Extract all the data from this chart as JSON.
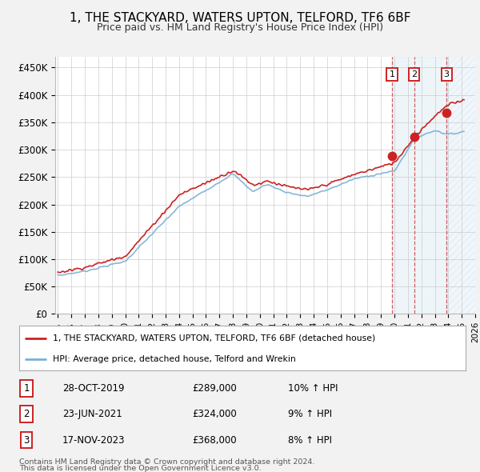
{
  "title": "1, THE STACKYARD, WATERS UPTON, TELFORD, TF6 6BF",
  "subtitle": "Price paid vs. HM Land Registry's House Price Index (HPI)",
  "ylim": [
    0,
    470000
  ],
  "yticks": [
    0,
    50000,
    100000,
    150000,
    200000,
    250000,
    300000,
    350000,
    400000,
    450000
  ],
  "ytick_labels": [
    "£0",
    "£50K",
    "£100K",
    "£150K",
    "£200K",
    "£250K",
    "£300K",
    "£350K",
    "£400K",
    "£450K"
  ],
  "hpi_color": "#7ab0d4",
  "price_color": "#cc2222",
  "background_color": "#f2f2f2",
  "plot_bg_color": "#ffffff",
  "legend_line1": "1, THE STACKYARD, WATERS UPTON, TELFORD, TF6 6BF (detached house)",
  "legend_line2": "HPI: Average price, detached house, Telford and Wrekin",
  "sale1_date": "28-OCT-2019",
  "sale1_price": "£289,000",
  "sale1_hpi": "10% ↑ HPI",
  "sale1_x": 2019.82,
  "sale2_date": "23-JUN-2021",
  "sale2_price": "£324,000",
  "sale2_hpi": "9% ↑ HPI",
  "sale2_x": 2021.47,
  "sale3_date": "17-NOV-2023",
  "sale3_price": "£368,000",
  "sale3_hpi": "8% ↑ HPI",
  "sale3_x": 2023.87,
  "sale1_val": 289000,
  "sale2_val": 324000,
  "sale3_val": 368000,
  "footer1": "Contains HM Land Registry data © Crown copyright and database right 2024.",
  "footer2": "This data is licensed under the Open Government Licence v3.0.",
  "xmin": 1994.8,
  "xmax": 2026.0
}
